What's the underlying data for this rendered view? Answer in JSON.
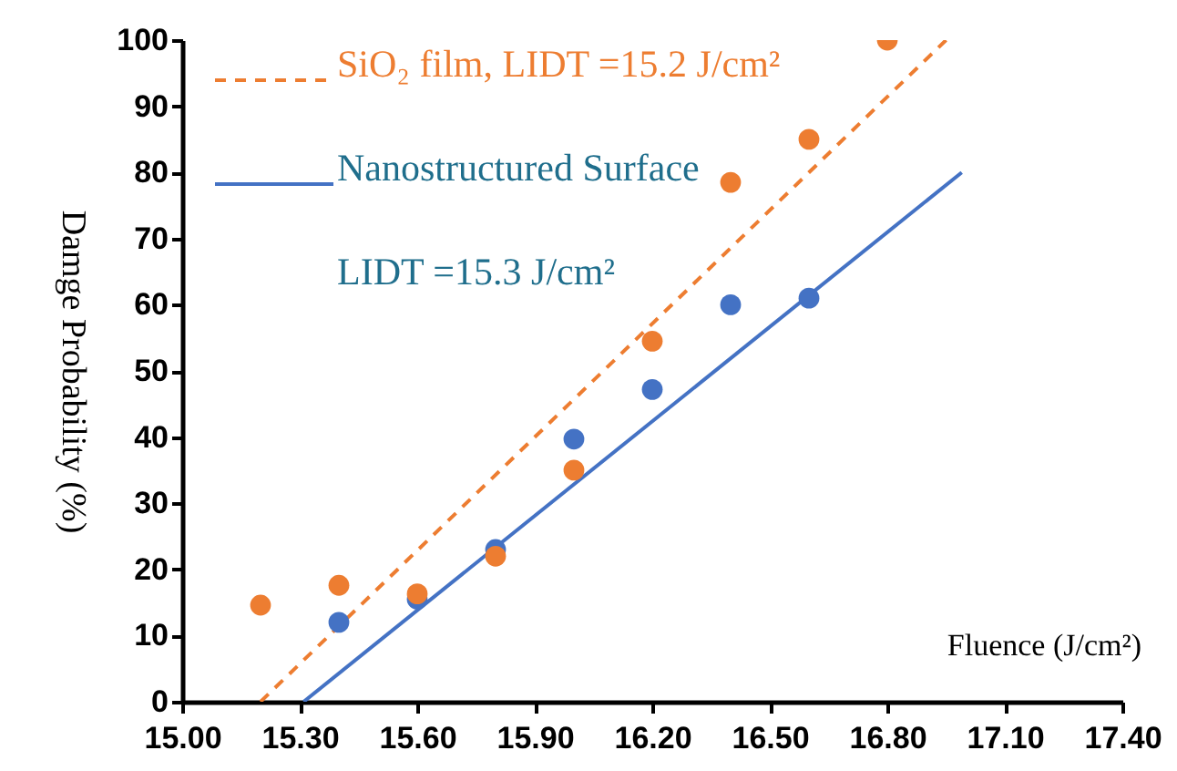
{
  "chart_data": {
    "type": "scatter",
    "xlabel": "Fluence (J/cm²)",
    "ylabel": "Damge Probability (%)",
    "xlim": [
      15.0,
      17.4
    ],
    "ylim": [
      0,
      100
    ],
    "xticks": [
      {
        "value": 15.0,
        "label": "15.00"
      },
      {
        "value": 15.3,
        "label": "15.30"
      },
      {
        "value": 15.6,
        "label": "15.60"
      },
      {
        "value": 15.9,
        "label": "15.90"
      },
      {
        "value": 16.2,
        "label": "16.20"
      },
      {
        "value": 16.5,
        "label": "16.50"
      },
      {
        "value": 16.8,
        "label": "16.80"
      },
      {
        "value": 17.1,
        "label": "17.10"
      },
      {
        "value": 17.4,
        "label": "17.40"
      }
    ],
    "yticks": [
      0,
      10,
      20,
      30,
      40,
      50,
      60,
      70,
      80,
      90,
      100
    ],
    "marker": "circle",
    "legend": "top left",
    "annotations": [
      "LIDT =15.3 J/cm²"
    ],
    "series": [
      {
        "type": "scatter",
        "color": "#ed7d31",
        "x": [
          15.2,
          15.4,
          15.6,
          15.8,
          16.0,
          16.2,
          16.4,
          16.6,
          16.8
        ],
        "values": [
          14.6,
          17.6,
          16.3,
          22,
          35,
          54.5,
          78.5,
          85,
          100
        ]
      },
      {
        "type": "scatter",
        "color": "#4472c4",
        "x": [
          15.4,
          15.6,
          15.8,
          16.0,
          16.2,
          16.4,
          16.6
        ],
        "values": [
          12,
          15.5,
          23,
          39.7,
          47.2,
          60,
          61
        ]
      },
      {
        "type": "line",
        "name": "SiO₂ film, LIDT =15.2 J/cm²",
        "color": "#ed7d31",
        "line_style": "dashed",
        "marker": "none",
        "x": [
          15.2,
          16.95
        ],
        "values": [
          0,
          100
        ]
      },
      {
        "type": "line",
        "name": "Nanostructured Surface",
        "color": "#4472c4",
        "line_style": "solid",
        "marker": "none",
        "x": [
          15.31,
          16.99
        ],
        "values": [
          0,
          80
        ]
      }
    ]
  }
}
